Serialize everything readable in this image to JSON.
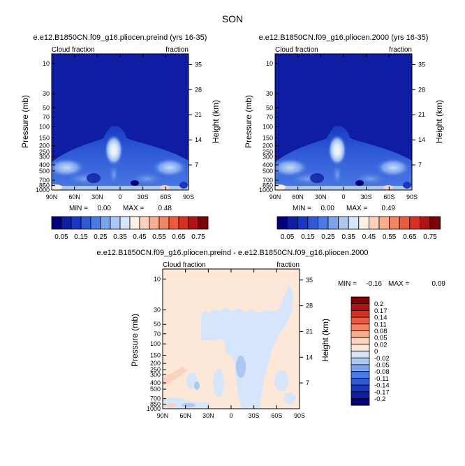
{
  "title": "SON",
  "colors": {
    "cloud_levels": [
      "#00007a",
      "#0e1da2",
      "#1838c4",
      "#2e5ad6",
      "#4a7ae4",
      "#7ca4ec",
      "#aac8f2",
      "#d6e6fa",
      "#fdf0e6",
      "#fbd3bc",
      "#f8ad8c",
      "#f4835f",
      "#ee5a3c",
      "#d8301f",
      "#b11213",
      "#7e0000"
    ],
    "diff_levels": [
      "#00007a",
      "#0e1da2",
      "#1838c4",
      "#2e5ad6",
      "#4a7ae4",
      "#7ca4ec",
      "#aac8f2",
      "#d6e6fa",
      "#fde8d8",
      "#fbd3bc",
      "#f8ad8c",
      "#f4835f",
      "#ee5a3c",
      "#d8301f",
      "#b11213",
      "#7e0000"
    ]
  },
  "chart_data": [
    {
      "type": "heatmap",
      "title": "e.e12.B1850CN.f09_g16.pliocen.preind (yrs 16-35)",
      "top_left_label": "Cloud fraction",
      "top_right_label": "fraction",
      "xlabel": "",
      "ylabel": "Pressure (mb)",
      "ylabel_right": "Height (km)",
      "x_ticks": [
        "90N",
        "60N",
        "30N",
        "0",
        "30S",
        "60S",
        "90S"
      ],
      "y_ticks": [
        "10",
        "30",
        "50",
        "70",
        "100",
        "150",
        "200",
        "250",
        "300",
        "400",
        "500",
        "700",
        "850",
        "1000"
      ],
      "y_right_ticks": [
        "35",
        "28",
        "21",
        "14",
        "7"
      ],
      "min_label": "MIN =",
      "min_value": "0.00",
      "max_label": "MAX =",
      "max_value": "0.48",
      "colorbar_labels": [
        "0.05",
        "0.15",
        "0.25",
        "0.35",
        "0.45",
        "0.55",
        "0.65",
        "0.75"
      ]
    },
    {
      "type": "heatmap",
      "title": "e.e12.B1850CN.f09_g16.pliocen.2000 (yrs 16-35)",
      "top_left_label": "Cloud fraction",
      "top_right_label": "fraction",
      "xlabel": "",
      "ylabel": "Pressure (mb)",
      "ylabel_right": "Height (km)",
      "x_ticks": [
        "90N",
        "60N",
        "30N",
        "0",
        "30S",
        "60S",
        "90S"
      ],
      "y_ticks": [
        "10",
        "30",
        "50",
        "70",
        "100",
        "150",
        "200",
        "250",
        "300",
        "400",
        "500",
        "700",
        "850",
        "1000"
      ],
      "y_right_ticks": [
        "35",
        "28",
        "21",
        "14",
        "7"
      ],
      "min_label": "MIN =",
      "min_value": "0.00",
      "max_label": "MAX =",
      "max_value": "0.49",
      "colorbar_labels": [
        "0.05",
        "0.15",
        "0.25",
        "0.35",
        "0.45",
        "0.55",
        "0.65",
        "0.75"
      ]
    },
    {
      "type": "heatmap",
      "title": "e.e12.B1850CN.f09_g16.pliocen.preind - e.e12.B1850CN.f09_g16.pliocen.2000",
      "top_left_label": "Cloud fraction",
      "top_right_label": "fraction",
      "xlabel": "",
      "ylabel": "Pressure (mb)",
      "ylabel_right": "Height (km)",
      "x_ticks": [
        "90N",
        "60N",
        "30N",
        "0",
        "30S",
        "60S",
        "90S"
      ],
      "y_ticks": [
        "10",
        "30",
        "50",
        "70",
        "100",
        "150",
        "200",
        "250",
        "300",
        "400",
        "500",
        "700",
        "850",
        "1000"
      ],
      "y_right_ticks": [
        "35",
        "28",
        "21",
        "14",
        "7"
      ],
      "min_label": "MIN =",
      "min_value": "-0.16",
      "max_label": "MAX =",
      "max_value": "0.09",
      "colorbar_labels": [
        "0.2",
        "0.17",
        "0.14",
        "0.11",
        "0.08",
        "0.05",
        "0.02",
        "0",
        "-0.02",
        "-0.05",
        "-0.08",
        "-0.11",
        "-0.14",
        "-0.17",
        "-0.2"
      ]
    }
  ]
}
